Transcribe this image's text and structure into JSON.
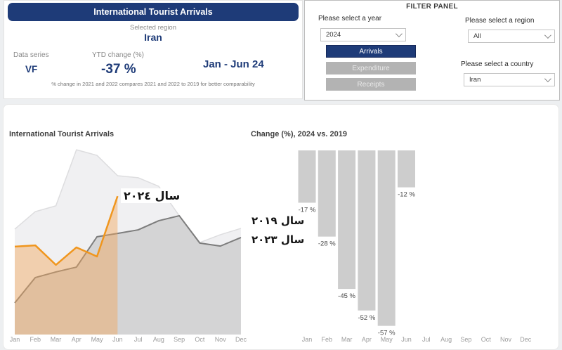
{
  "summary_card": {
    "title": "International Tourist Arrivals",
    "selected_region_label": "Selected region",
    "selected_region_value": "Iran",
    "data_series_label": "Data series",
    "data_series_value": "VF",
    "ytd_label": "YTD change (%)",
    "ytd_value": "-37 %",
    "period": "Jan - Jun 24",
    "footnote": "% change in 2021 and 2022 compares 2021 and 2022 to 2019 for better comparability"
  },
  "filter_panel": {
    "title": "FILTER PANEL",
    "year_label": "Please select a year",
    "year_value": "2024",
    "region_label": "Please select a region",
    "region_value": "All",
    "country_label": "Please select a country",
    "country_value": "Iran",
    "buttons": [
      {
        "label": "Arrivals",
        "active": true
      },
      {
        "label": "Expenditure",
        "active": false
      },
      {
        "label": "Receipts",
        "active": false
      }
    ]
  },
  "colors": {
    "navy": "#1e3b78",
    "orange_line": "#f0961e",
    "orange_fill": "rgba(242,166,90,0.45)",
    "gray_2023_fill": "#d4d4d5",
    "gray_2023_line": "#7c7c7c",
    "gray_2019_fill": "#f0f0f2",
    "gray_2019_line": "#dddddf",
    "bar_fill": "#cdcdcd",
    "axis_text": "#9b9b9b"
  },
  "chart_data": [
    {
      "type": "area",
      "title": "International Tourist Arrivals",
      "x": [
        "Jan",
        "Feb",
        "Mar",
        "Apr",
        "May",
        "Jun",
        "Jul",
        "Aug",
        "Sep",
        "Oct",
        "Nov",
        "Dec"
      ],
      "ylabel": "",
      "axis_visible": false,
      "series": [
        {
          "name": "2019",
          "values": [
            56.6,
            66.0,
            69.1,
            99.2,
            96.2,
            85.3,
            84.2,
            79.6,
            63.8,
            49.4,
            53.6,
            57.0
          ]
        },
        {
          "name": "2023",
          "values": [
            17.0,
            30.6,
            33.6,
            36.2,
            52.5,
            54.3,
            56.2,
            61.1,
            63.8,
            49.1,
            47.5,
            52.1
          ]
        },
        {
          "name": "2024",
          "values": [
            47.2,
            47.9,
            37.4,
            46.8,
            41.9,
            74.3
          ]
        }
      ],
      "annotations": [
        {
          "text": "سال ٢٠٢٤",
          "series": "2024"
        },
        {
          "text": "سال ٢٠١٩",
          "series": "2019"
        },
        {
          "text": "سال ٢٠٢٣",
          "series": "2023"
        }
      ]
    },
    {
      "type": "bar",
      "title": "Change (%), 2024 vs. 2019",
      "categories": [
        "Jan",
        "Feb",
        "Mar",
        "Apr",
        "May",
        "Jun",
        "Jul",
        "Aug",
        "Sep",
        "Oct",
        "Nov",
        "Dec"
      ],
      "values": [
        -17,
        -28,
        -45,
        -52,
        -57,
        -12,
        null,
        null,
        null,
        null,
        null,
        null
      ],
      "labels": [
        "-17 %",
        "-28 %",
        "-45 %",
        "-52 %",
        "-57 %",
        "-12 %"
      ],
      "ylim": [
        -60,
        0
      ],
      "grid": false
    }
  ]
}
